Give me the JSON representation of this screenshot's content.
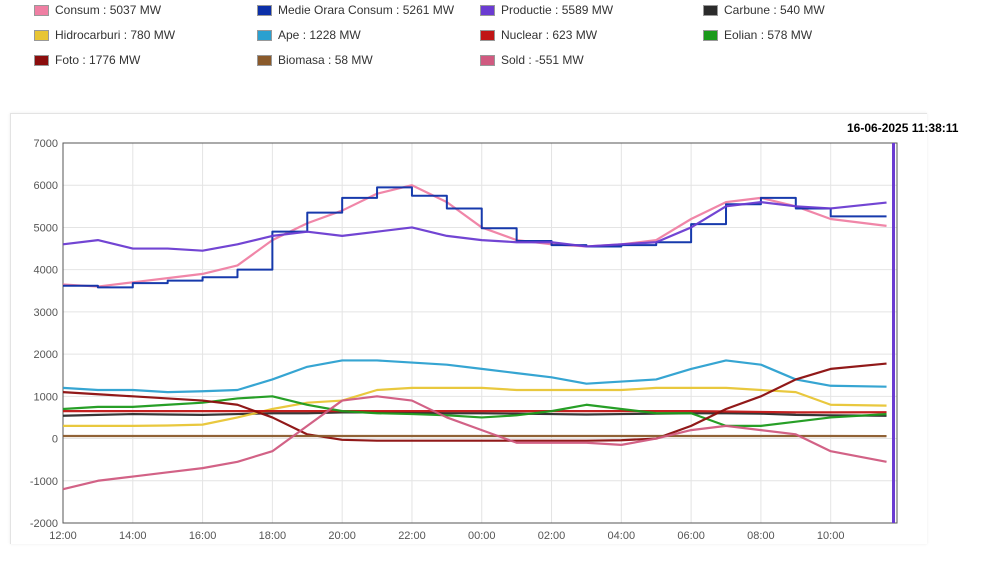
{
  "legend": [
    {
      "name": "Consum",
      "value": "5037 MW",
      "color": "#ef7fa3"
    },
    {
      "name": "Medie Orara Consum",
      "value": "5261 MW",
      "color": "#0b2fa8"
    },
    {
      "name": "Productie",
      "value": "5589 MW",
      "color": "#6a3bd1"
    },
    {
      "name": "Carbune",
      "value": "540 MW",
      "color": "#2b2b2b"
    },
    {
      "name": "Hidrocarburi",
      "value": "780 MW",
      "color": "#e8c534"
    },
    {
      "name": "Ape",
      "value": "1228 MW",
      "color": "#2ba0d0"
    },
    {
      "name": "Nuclear",
      "value": "623 MW",
      "color": "#c01515"
    },
    {
      "name": "Eolian",
      "value": "578 MW",
      "color": "#1b9a1b"
    },
    {
      "name": "Foto",
      "value": "1776 MW",
      "color": "#8b0d0d"
    },
    {
      "name": "Biomasa",
      "value": "58 MW",
      "color": "#8a5a2b"
    },
    {
      "name": "Sold",
      "value": "-551 MW",
      "color": "#d05a80"
    }
  ],
  "timestamp": "16-06-2025 11:38:11",
  "chart_data": {
    "type": "line",
    "x": [
      12,
      13,
      14,
      15,
      16,
      17,
      18,
      19,
      20,
      21,
      22,
      23,
      24,
      25,
      26,
      27,
      28,
      29,
      30,
      31,
      32,
      33,
      34,
      35.6
    ],
    "xticks": [
      12,
      14,
      16,
      18,
      20,
      22,
      24,
      26,
      28,
      30,
      32,
      34
    ],
    "xtick_labels": [
      "12:00",
      "14:00",
      "16:00",
      "18:00",
      "20:00",
      "22:00",
      "00:00",
      "02:00",
      "04:00",
      "06:00",
      "08:00",
      "10:00"
    ],
    "xlim": [
      12,
      35.9
    ],
    "ylim": [
      -2000,
      7000
    ],
    "yticks": [
      -2000,
      -1000,
      0,
      1000,
      2000,
      3000,
      4000,
      5000,
      6000,
      7000
    ],
    "ytick_labels": [
      "-2000",
      "-1000",
      "0",
      "1000",
      "2000",
      "3000",
      "4000",
      "5000",
      "6000",
      "7000"
    ],
    "current_time_marker": 35.8,
    "series": [
      {
        "name": "Consum",
        "color": "#ef7fa3",
        "values": [
          3650,
          3600,
          3700,
          3800,
          3900,
          4100,
          4700,
          5100,
          5400,
          5800,
          6000,
          5600,
          5000,
          4700,
          4600,
          4550,
          4600,
          4700,
          5200,
          5600,
          5700,
          5500,
          5200,
          5037
        ]
      },
      {
        "name": "Medie Orara Consum",
        "color": "#0b2fa8",
        "step": true,
        "values": [
          3620,
          3580,
          3680,
          3740,
          3820,
          4000,
          4900,
          5350,
          5700,
          5950,
          5750,
          5450,
          4980,
          4680,
          4580,
          4550,
          4580,
          4650,
          5080,
          5550,
          5700,
          5450,
          5261,
          5261
        ]
      },
      {
        "name": "Productie",
        "color": "#6a3bd1",
        "values": [
          4600,
          4700,
          4500,
          4500,
          4450,
          4600,
          4800,
          4900,
          4800,
          4900,
          5000,
          4800,
          4700,
          4650,
          4650,
          4550,
          4600,
          4650,
          5000,
          5500,
          5600,
          5500,
          5450,
          5589
        ]
      },
      {
        "name": "Carbune",
        "color": "#2b2b2b",
        "values": [
          540,
          560,
          580,
          570,
          560,
          580,
          600,
          600,
          620,
          620,
          610,
          600,
          600,
          590,
          580,
          570,
          580,
          590,
          600,
          600,
          590,
          560,
          550,
          540
        ]
      },
      {
        "name": "Hidrocarburi",
        "color": "#e8c534",
        "values": [
          300,
          300,
          300,
          310,
          330,
          500,
          700,
          850,
          900,
          1150,
          1200,
          1200,
          1200,
          1150,
          1150,
          1150,
          1150,
          1200,
          1200,
          1200,
          1150,
          1100,
          800,
          780
        ]
      },
      {
        "name": "Ape",
        "color": "#2ba0d0",
        "values": [
          1200,
          1150,
          1150,
          1100,
          1120,
          1150,
          1400,
          1700,
          1850,
          1850,
          1800,
          1750,
          1650,
          1550,
          1450,
          1300,
          1350,
          1400,
          1650,
          1850,
          1750,
          1400,
          1250,
          1228
        ]
      },
      {
        "name": "Nuclear",
        "color": "#c01515",
        "values": [
          650,
          650,
          650,
          650,
          650,
          650,
          650,
          650,
          650,
          650,
          650,
          650,
          650,
          650,
          650,
          650,
          650,
          650,
          650,
          640,
          630,
          620,
          620,
          623
        ]
      },
      {
        "name": "Eolian",
        "color": "#1b9a1b",
        "values": [
          700,
          750,
          750,
          800,
          850,
          950,
          1000,
          800,
          650,
          600,
          580,
          550,
          500,
          550,
          650,
          800,
          700,
          600,
          600,
          300,
          300,
          400,
          500,
          578
        ]
      },
      {
        "name": "Foto",
        "color": "#8b0d0d",
        "values": [
          1100,
          1050,
          1000,
          950,
          900,
          800,
          500,
          100,
          -30,
          -50,
          -50,
          -50,
          -50,
          -50,
          -50,
          -50,
          -40,
          0,
          300,
          700,
          1000,
          1400,
          1650,
          1776
        ]
      },
      {
        "name": "Biomasa",
        "color": "#8a5a2b",
        "values": [
          60,
          60,
          60,
          60,
          60,
          60,
          60,
          60,
          60,
          60,
          60,
          60,
          60,
          60,
          60,
          60,
          60,
          60,
          60,
          60,
          60,
          60,
          60,
          58
        ]
      },
      {
        "name": "Sold",
        "color": "#d05a80",
        "values": [
          -1200,
          -1000,
          -900,
          -800,
          -700,
          -550,
          -300,
          300,
          900,
          1000,
          900,
          500,
          200,
          -100,
          -100,
          -100,
          -150,
          0,
          200,
          300,
          200,
          100,
          -300,
          -551
        ]
      }
    ]
  }
}
